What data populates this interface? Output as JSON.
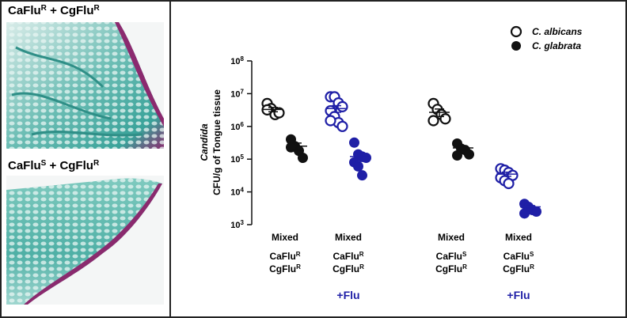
{
  "panels": [
    {
      "label": [
        "CaFlu",
        "R",
        " + CgFlu",
        "R"
      ]
    },
    {
      "label": [
        "CaFlu",
        "S",
        " + CgFlu",
        "R"
      ]
    }
  ],
  "chart_data": {
    "type": "dot",
    "ylabel_italic": "Candida",
    "ylabel": "CFU/g of Tongue tissue",
    "log_y": true,
    "ylim": [
      1000,
      100000000
    ],
    "yticks": [
      {
        "value": 1000,
        "label": "10",
        "exponent": "3"
      },
      {
        "value": 10000,
        "label": "10",
        "exponent": "4"
      },
      {
        "value": 100000,
        "label": "10",
        "exponent": "5"
      },
      {
        "value": 1000000,
        "label": "10",
        "exponent": "6"
      },
      {
        "value": 10000000,
        "label": "10",
        "exponent": "7"
      },
      {
        "value": 100000000,
        "label": "10",
        "exponent": "8"
      }
    ],
    "categories": [
      "Mixed",
      "Mixed",
      "Mixed",
      "Mixed"
    ],
    "strain_labels": [
      [
        [
          "CaFlu",
          "R"
        ],
        [
          "CgFlu",
          "R"
        ]
      ],
      [
        [
          "CaFlu",
          "R"
        ],
        [
          "CgFlu",
          "R"
        ]
      ],
      [
        [
          "CaFlu",
          "S"
        ],
        [
          "CgFlu",
          "R"
        ]
      ],
      [
        [
          "CaFlu",
          "S"
        ],
        [
          "CgFlu",
          "R"
        ]
      ]
    ],
    "treatments": [
      null,
      "+Flu",
      null,
      "+Flu"
    ],
    "group_colors": [
      "#111111",
      "#1f1fa6",
      "#111111",
      "#1f1fa6"
    ],
    "series": [
      {
        "name": "C. albicans",
        "marker": "open",
        "values": [
          [
            5000000,
            3500000,
            2300000,
            2600000,
            3200000
          ],
          [
            8000000,
            8000000,
            5200000,
            4000000,
            3000000,
            2000000,
            1300000,
            1000000,
            1500000
          ],
          [
            5000000,
            3300000,
            2300000,
            1700000,
            1500000
          ],
          [
            51000,
            46000,
            39000,
            32000,
            27000,
            22000,
            18000
          ]
        ],
        "means": [
          3300000,
          3500000,
          2700000,
          35000
        ],
        "errors": [
          500000,
          800000,
          700000,
          5000
        ]
      },
      {
        "name": "C. glabrata",
        "marker": "filled",
        "values": [
          [
            400000,
            250000,
            180000,
            110000,
            230000
          ],
          [
            320000,
            140000,
            120000,
            110000,
            80000,
            60000,
            32000
          ],
          [
            300000,
            210000,
            190000,
            140000,
            130000
          ],
          [
            4300.0,
            3200,
            2800,
            2500,
            2200,
            3500
          ]
        ],
        "means": [
          250000,
          120000,
          220000,
          3500
        ],
        "errors": [
          60000,
          35000,
          30000,
          300
        ]
      }
    ]
  }
}
